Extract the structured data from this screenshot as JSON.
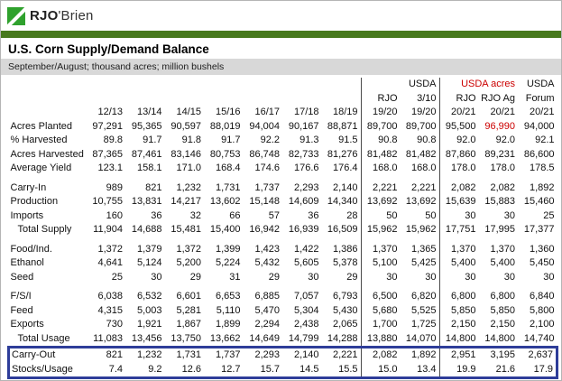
{
  "logo": {
    "bold": "RJO",
    "rest": "'Brien"
  },
  "title": "U.S. Corn Supply/Demand Balance",
  "subtitle": "September/August;  thousand acres;  million bushels",
  "colors": {
    "logo_green": "#2fa12d",
    "green_bar": "#47791d",
    "band_gray": "#d8d8d8",
    "highlight_red": "#cc0000",
    "box_blue": "#2e3d99"
  },
  "table": {
    "columns": [
      {
        "h1": "",
        "h2": "",
        "h3": "12/13"
      },
      {
        "h1": "",
        "h2": "",
        "h3": "13/14"
      },
      {
        "h1": "",
        "h2": "",
        "h3": "14/15"
      },
      {
        "h1": "",
        "h2": "",
        "h3": "15/16"
      },
      {
        "h1": "",
        "h2": "",
        "h3": "16/17"
      },
      {
        "h1": "",
        "h2": "",
        "h3": "17/18"
      },
      {
        "h1": "",
        "h2": "",
        "h3": "18/19"
      },
      {
        "h1": "",
        "h2": "RJO",
        "h3": "19/20",
        "sep_left": true
      },
      {
        "h1": "USDA",
        "h2": "3/10",
        "h3": "19/20"
      },
      {
        "h1": "",
        "h2": "RJO",
        "h3": "20/21",
        "sep_left": true
      },
      {
        "h1": "USDA acres",
        "h2": "RJO Ag",
        "h3": "20/21",
        "h1_red": true
      },
      {
        "h1": "USDA",
        "h2": "Forum",
        "h3": "20/21"
      }
    ],
    "rows": [
      {
        "label": "Acres Planted",
        "values": [
          "97,291",
          "95,365",
          "90,597",
          "88,019",
          "94,004",
          "90,167",
          "88,871",
          "89,700",
          "89,700",
          "95,500",
          "96,990",
          "94,000"
        ],
        "red_cols": [
          10
        ]
      },
      {
        "label": "% Harvested",
        "values": [
          "89.8",
          "91.7",
          "91.8",
          "91.7",
          "92.2",
          "91.3",
          "91.5",
          "90.8",
          "90.8",
          "92.0",
          "92.0",
          "92.1"
        ]
      },
      {
        "label": "Acres Harvested",
        "values": [
          "87,365",
          "87,461",
          "83,146",
          "80,753",
          "86,748",
          "82,733",
          "81,276",
          "81,482",
          "81,482",
          "87,860",
          "89,231",
          "86,600"
        ]
      },
      {
        "label": "Average Yield",
        "values": [
          "123.1",
          "158.1",
          "171.0",
          "168.4",
          "174.6",
          "176.6",
          "176.4",
          "168.0",
          "168.0",
          "178.0",
          "178.0",
          "178.5"
        ]
      },
      {
        "spacer": true
      },
      {
        "label": "Carry-In",
        "values": [
          "989",
          "821",
          "1,232",
          "1,731",
          "1,737",
          "2,293",
          "2,140",
          "2,221",
          "2,221",
          "2,082",
          "2,082",
          "1,892"
        ]
      },
      {
        "label": "Production",
        "values": [
          "10,755",
          "13,831",
          "14,217",
          "13,602",
          "15,148",
          "14,609",
          "14,340",
          "13,692",
          "13,692",
          "15,639",
          "15,883",
          "15,460"
        ]
      },
      {
        "label": "Imports",
        "values": [
          "160",
          "36",
          "32",
          "66",
          "57",
          "36",
          "28",
          "50",
          "50",
          "30",
          "30",
          "25"
        ]
      },
      {
        "label": "Total Supply",
        "indent": true,
        "values": [
          "11,904",
          "14,688",
          "15,481",
          "15,400",
          "16,942",
          "16,939",
          "16,509",
          "15,962",
          "15,962",
          "17,751",
          "17,995",
          "17,377"
        ]
      },
      {
        "spacer": true
      },
      {
        "label": "Food/Ind.",
        "values": [
          "1,372",
          "1,379",
          "1,372",
          "1,399",
          "1,423",
          "1,422",
          "1,386",
          "1,370",
          "1,365",
          "1,370",
          "1,370",
          "1,360"
        ]
      },
      {
        "label": "Ethanol",
        "values": [
          "4,641",
          "5,124",
          "5,200",
          "5,224",
          "5,432",
          "5,605",
          "5,378",
          "5,100",
          "5,425",
          "5,400",
          "5,400",
          "5,450"
        ]
      },
      {
        "label": "Seed",
        "values": [
          "25",
          "30",
          "29",
          "31",
          "29",
          "30",
          "29",
          "30",
          "30",
          "30",
          "30",
          "30"
        ]
      },
      {
        "spacer": true
      },
      {
        "label": "F/S/I",
        "values": [
          "6,038",
          "6,532",
          "6,601",
          "6,653",
          "6,885",
          "7,057",
          "6,793",
          "6,500",
          "6,820",
          "6,800",
          "6,800",
          "6,840"
        ]
      },
      {
        "label": "Feed",
        "values": [
          "4,315",
          "5,003",
          "5,281",
          "5,110",
          "5,470",
          "5,304",
          "5,430",
          "5,680",
          "5,525",
          "5,850",
          "5,850",
          "5,800"
        ]
      },
      {
        "label": "Exports",
        "values": [
          "730",
          "1,921",
          "1,867",
          "1,899",
          "2,294",
          "2,438",
          "2,065",
          "1,700",
          "1,725",
          "2,150",
          "2,150",
          "2,100"
        ]
      },
      {
        "label": "Total Usage",
        "indent": true,
        "values": [
          "11,083",
          "13,456",
          "13,750",
          "13,662",
          "14,649",
          "14,799",
          "14,288",
          "13,880",
          "14,070",
          "14,800",
          "14,800",
          "14,740"
        ]
      },
      {
        "label": "Carry-Out",
        "box": "top",
        "values": [
          "821",
          "1,232",
          "1,731",
          "1,737",
          "2,293",
          "2,140",
          "2,221",
          "2,082",
          "1,892",
          "2,951",
          "3,195",
          "2,637"
        ]
      },
      {
        "label": "Stocks/Usage",
        "box": "bottom",
        "values": [
          "7.4",
          "9.2",
          "12.6",
          "12.7",
          "15.7",
          "14.5",
          "15.5",
          "15.0",
          "13.4",
          "19.9",
          "21.6",
          "17.9"
        ]
      }
    ]
  }
}
